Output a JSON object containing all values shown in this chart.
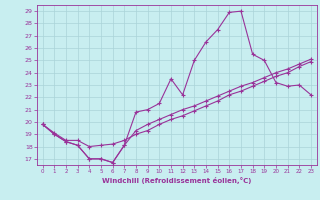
{
  "xlabel": "Windchill (Refroidissement éolien,°C)",
  "bg_color": "#c8eef0",
  "grid_color": "#aad4d8",
  "line_color": "#993399",
  "ylim": [
    16.5,
    29.5
  ],
  "xlim": [
    -0.5,
    23.5
  ],
  "yticks": [
    17,
    18,
    19,
    20,
    21,
    22,
    23,
    24,
    25,
    26,
    27,
    28,
    29
  ],
  "xticks": [
    0,
    1,
    2,
    3,
    4,
    5,
    6,
    7,
    8,
    9,
    10,
    11,
    12,
    13,
    14,
    15,
    16,
    17,
    18,
    19,
    20,
    21,
    22,
    23
  ],
  "line1_x": [
    0,
    1,
    2,
    3,
    4,
    5,
    6,
    7,
    8,
    9,
    10,
    11,
    12,
    13,
    14,
    15,
    16,
    17,
    18,
    19,
    20,
    21,
    22,
    23
  ],
  "line1_y": [
    19.8,
    19.0,
    18.4,
    18.1,
    17.0,
    17.0,
    16.7,
    18.1,
    20.8,
    21.0,
    21.5,
    23.5,
    22.2,
    25.0,
    26.5,
    27.5,
    28.9,
    29.0,
    25.5,
    25.0,
    23.2,
    22.9,
    23.0,
    22.2
  ],
  "line2_x": [
    0,
    1,
    2,
    3,
    4,
    5,
    6,
    7,
    8,
    9,
    10,
    11,
    12,
    13,
    14,
    15,
    16,
    17,
    18,
    19,
    20,
    21,
    22,
    23
  ],
  "line2_y": [
    19.8,
    19.1,
    18.5,
    18.5,
    18.0,
    18.1,
    18.2,
    18.5,
    19.0,
    19.3,
    19.8,
    20.2,
    20.5,
    20.9,
    21.3,
    21.7,
    22.2,
    22.5,
    22.9,
    23.3,
    23.7,
    24.0,
    24.5,
    24.9
  ],
  "line3_x": [
    0,
    1,
    2,
    3,
    4,
    5,
    6,
    7,
    8,
    9,
    10,
    11,
    12,
    13,
    14,
    15,
    16,
    17,
    18,
    19,
    20,
    21,
    22,
    23
  ],
  "line3_y": [
    19.8,
    19.0,
    18.4,
    18.1,
    17.0,
    17.0,
    16.7,
    18.1,
    19.3,
    19.8,
    20.2,
    20.6,
    21.0,
    21.3,
    21.7,
    22.1,
    22.5,
    22.9,
    23.2,
    23.6,
    24.0,
    24.3,
    24.7,
    25.1
  ]
}
